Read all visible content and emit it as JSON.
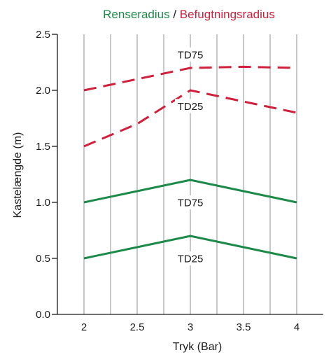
{
  "chart_data": {
    "type": "line",
    "title_parts": [
      {
        "text": "Renseradius",
        "color": "#1e8a4a"
      },
      {
        "text": " / ",
        "color": "#1a1a1a"
      },
      {
        "text": "Befugtningsradius",
        "color": "#d0203c"
      }
    ],
    "xlabel": "Tryk (Bar)",
    "ylabel": "Kastelængde (m)",
    "xlim": [
      1.75,
      4.25
    ],
    "ylim": [
      0,
      2.5
    ],
    "x_ticks": [
      2,
      2.5,
      3,
      3.5,
      4
    ],
    "x_tick_labels": [
      "2",
      "2.5",
      "3",
      "3.5",
      "4"
    ],
    "y_ticks": [
      0,
      0.5,
      1.0,
      1.5,
      2.0,
      2.5
    ],
    "y_tick_labels": [
      "0.0",
      "0.5",
      "1.0",
      "1.5",
      "2.0",
      "2.5"
    ],
    "grid": true,
    "series": [
      {
        "key": "befugtning-td75",
        "label": "TD75",
        "color": "#d0203c",
        "style": "dashed",
        "x": [
          2,
          2.5,
          3,
          3.5,
          4
        ],
        "y": [
          2.0,
          2.1,
          2.2,
          2.21,
          2.2
        ],
        "label_at": [
          3.0,
          2.32
        ]
      },
      {
        "key": "befugtning-td25",
        "label": "TD25",
        "color": "#d0203c",
        "style": "dashed",
        "x": [
          2,
          2.5,
          3,
          3.5,
          4
        ],
        "y": [
          1.5,
          1.7,
          2.0,
          1.9,
          1.8
        ],
        "label_at": [
          3.0,
          1.86
        ]
      },
      {
        "key": "rense-td75",
        "label": "TD75",
        "color": "#1e8a4a",
        "style": "solid",
        "x": [
          2,
          2.5,
          3,
          3.5,
          4
        ],
        "y": [
          1.0,
          1.1,
          1.2,
          1.1,
          1.0
        ],
        "label_at": [
          3.0,
          1.0
        ]
      },
      {
        "key": "rense-td25",
        "label": "TD25",
        "color": "#1e8a4a",
        "style": "solid",
        "x": [
          2,
          2.5,
          3,
          3.5,
          4
        ],
        "y": [
          0.5,
          0.6,
          0.7,
          0.6,
          0.5
        ],
        "label_at": [
          3.0,
          0.5
        ]
      }
    ]
  }
}
